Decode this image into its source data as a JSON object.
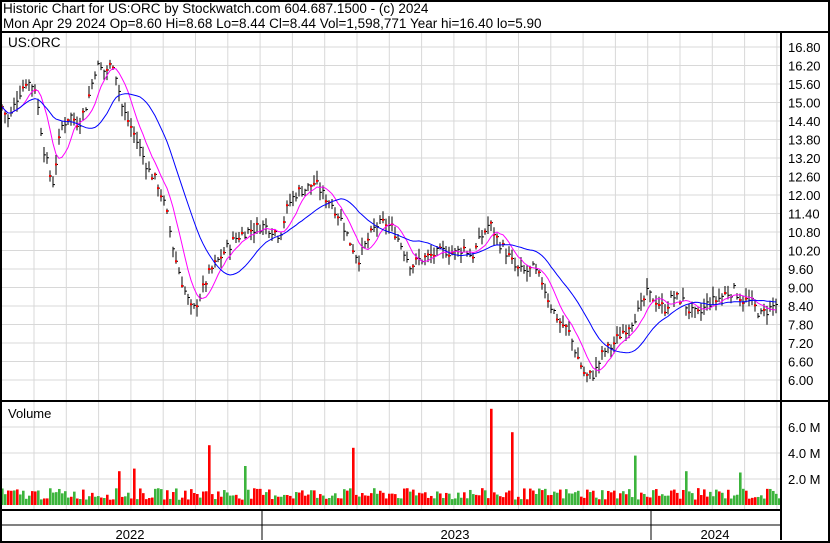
{
  "header": {
    "title": "Historic Chart for US:ORC by Stockwatch.com 604.687.1500 - (c) 2024",
    "quote": "Mon Apr 29 2024  Op=8.60  Hi=8.68  Lo=8.44  Cl=8.44  Vol=1,598,771  Year hi=16.40  lo=5.90"
  },
  "chart_data": [
    {
      "type": "line",
      "title": "US:ORC",
      "price_ticks": [
        "16.80",
        "16.20",
        "15.60",
        "15.00",
        "14.40",
        "13.80",
        "13.20",
        "12.60",
        "12.00",
        "11.40",
        "10.80",
        "10.20",
        "9.60",
        "9.00",
        "8.40",
        "7.80",
        "7.20",
        "6.60",
        "6.00"
      ],
      "ylim": [
        5.7,
        17.2
      ],
      "approx_closes": [
        15.0,
        14.4,
        15.2,
        15.7,
        15.5,
        13.5,
        12.3,
        14.2,
        14.6,
        14.3,
        15.0,
        16.2,
        16.0,
        16.3,
        14.8,
        14.2,
        13.5,
        12.8,
        12.4,
        11.5,
        10.0,
        9.0,
        8.2,
        8.8,
        9.5,
        9.9,
        10.3,
        10.6,
        10.8,
        10.9,
        11.0,
        10.9,
        10.7,
        11.7,
        12.1,
        12.2,
        12.4,
        12.0,
        11.7,
        11.2,
        10.5,
        9.9,
        10.5,
        11.0,
        11.1,
        10.9,
        10.3,
        9.7,
        9.9,
        10.0,
        10.1,
        10.2,
        10.1,
        10.3,
        10.0,
        10.6,
        11.1,
        10.5,
        10.1,
        9.6,
        9.5,
        9.6,
        9.2,
        8.4,
        7.9,
        7.6,
        6.8,
        6.1,
        6.2,
        6.9,
        7.1,
        7.5,
        7.8,
        8.2,
        8.8,
        8.6,
        8.3,
        8.7,
        8.6,
        8.2,
        8.1,
        8.5,
        8.6,
        8.8,
        8.9,
        8.6,
        8.5,
        8.1,
        8.3,
        8.5
      ],
      "moving_averages": [
        {
          "color": "#ff00ff"
        },
        {
          "color": "#0000ff"
        }
      ],
      "grid": true
    },
    {
      "type": "bar",
      "title": "Volume",
      "volume_ticks": [
        "6.0 M",
        "4.0 M",
        "2.0 M"
      ],
      "ylim_millions": [
        0,
        7.6
      ],
      "typical_volume_millions": 1.0,
      "notable_spikes_millions": [
        2.6,
        2.8,
        4.6,
        3.0,
        4.4,
        7.4,
        5.6,
        3.8,
        2.6,
        2.5
      ],
      "colors": {
        "up": "#3cb43c",
        "down": "#ff0000"
      }
    }
  ],
  "x_axis": {
    "years": [
      "2022",
      "2023",
      "2024"
    ]
  }
}
